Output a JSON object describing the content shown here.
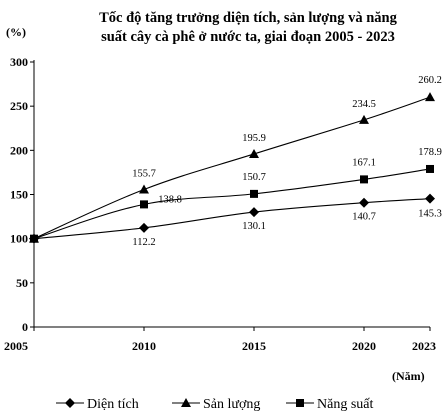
{
  "chart_data": {
    "type": "line",
    "title_lines": [
      "Tốc độ tăng trưởng diện tích, sản lượng và năng",
      "suất cây cà phê ở nước ta, giai đoạn 2005 - 2023"
    ],
    "ylabel": "(%)",
    "xlabel": "(Năm)",
    "x": [
      "2005",
      "2010",
      "2015",
      "2020",
      "2023"
    ],
    "x_values": [
      2005,
      2010,
      2015,
      2020,
      2023
    ],
    "ylim": [
      0,
      300
    ],
    "yticks": [
      0,
      50,
      100,
      150,
      200,
      250,
      300
    ],
    "grid": false,
    "legend_position": "bottom",
    "series": [
      {
        "name": "Diện tích",
        "marker": "diamond",
        "values": [
          100,
          112.2,
          130.1,
          140.7,
          145.3
        ],
        "labels": [
          "",
          "112.2",
          "130.1",
          "140.7",
          "145.3"
        ]
      },
      {
        "name": "Sản lượng",
        "marker": "triangle",
        "values": [
          100,
          155.7,
          195.9,
          234.5,
          260.2
        ],
        "labels": [
          "",
          "155.7",
          "195.9",
          "234.5",
          "260.2"
        ]
      },
      {
        "name": "Năng suất",
        "marker": "square",
        "values": [
          100,
          138.8,
          150.7,
          167.1,
          178.9
        ],
        "labels": [
          "",
          "138.8",
          "150.7",
          "167.1",
          "178.9"
        ]
      }
    ]
  }
}
